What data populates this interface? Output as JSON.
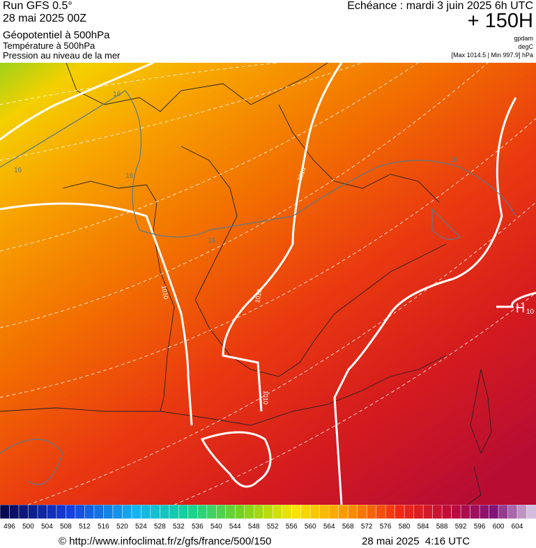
{
  "header": {
    "left": [
      "Run GFS 0.5°",
      "28 mai 2025 00Z",
      "Géopotentiel à 500hPa",
      "Température à 500hPa",
      "Pression au niveau de la mer"
    ],
    "title": "Echéance : mardi 3 juin 2025 6h UTC",
    "lead": "+ 150H",
    "units": [
      "gpdam",
      "degC",
      "[Max 1014.5 | Min 997.9] hPa"
    ]
  },
  "map": {
    "isotherm_labels": [
      "16",
      "16",
      "16",
      "16",
      "16"
    ],
    "isobar_labels": [
      "1010",
      "1010",
      "1010",
      "1010"
    ],
    "high": "H",
    "high_value": "10"
  },
  "colorbar": {
    "labels": [
      496,
      500,
      504,
      508,
      512,
      516,
      520,
      524,
      528,
      532,
      536,
      540,
      544,
      548,
      552,
      556,
      560,
      564,
      568,
      572,
      576,
      580,
      584,
      588,
      592,
      596,
      600,
      604
    ]
  },
  "footer": {
    "source": "© http://www.infoclimat.fr/z/gfs/france/500/150",
    "date": "28 mai 2025  4:16 UTC"
  }
}
